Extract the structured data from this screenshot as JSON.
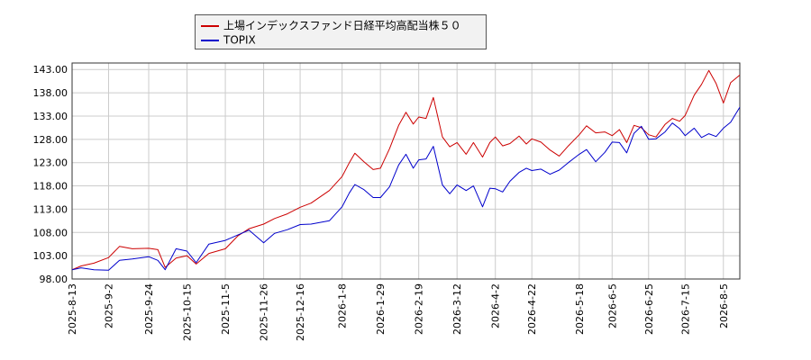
{
  "chart_data": {
    "type": "line",
    "title": "",
    "xlabel": "",
    "ylabel": "",
    "ylim": [
      98,
      144.4
    ],
    "yticks": [
      98,
      103,
      108,
      113,
      118,
      123,
      128,
      133,
      138,
      143
    ],
    "ytick_labels": [
      "98.00",
      "103.00",
      "108.00",
      "113.00",
      "118.00",
      "123.00",
      "128.00",
      "133.00",
      "138.00",
      "143.00"
    ],
    "x_start": "2025-08-13",
    "x_end": "2026-08-14",
    "xticks": [
      "2025-8-13",
      "2025-9-2",
      "2025-9-24",
      "2025-10-15",
      "2025-11-5",
      "2025-11-26",
      "2025-12-16",
      "2026-1-8",
      "2026-1-29",
      "2026-2-19",
      "2026-3-12",
      "2026-4-2",
      "2026-4-22",
      "2026-5-18",
      "2026-6-5",
      "2026-6-25",
      "2026-7-15",
      "2026-8-5"
    ],
    "xtick_dates": [
      "2025-08-13",
      "2025-09-02",
      "2025-09-24",
      "2025-10-15",
      "2025-11-05",
      "2025-11-26",
      "2025-12-16",
      "2026-01-08",
      "2026-01-29",
      "2026-02-19",
      "2026-03-12",
      "2026-04-02",
      "2026-04-22",
      "2026-05-18",
      "2026-06-05",
      "2026-06-25",
      "2026-07-15",
      "2026-08-05"
    ],
    "grid": true,
    "legend_position": "top-center",
    "series": [
      {
        "name": "上場インデックスファンド日経平均高配当株５０",
        "color": "#cc0000",
        "points": [
          [
            "2025-08-13",
            100.0
          ],
          [
            "2025-08-18",
            100.8
          ],
          [
            "2025-08-25",
            101.4
          ],
          [
            "2025-09-02",
            102.6
          ],
          [
            "2025-09-08",
            105.0
          ],
          [
            "2025-09-15",
            104.5
          ],
          [
            "2025-09-24",
            104.6
          ],
          [
            "2025-09-29",
            104.3
          ],
          [
            "2025-10-03",
            100.5
          ],
          [
            "2025-10-09",
            102.5
          ],
          [
            "2025-10-15",
            103.0
          ],
          [
            "2025-10-20",
            101.2
          ],
          [
            "2025-10-27",
            103.5
          ],
          [
            "2025-11-05",
            104.5
          ],
          [
            "2025-11-12",
            107.3
          ],
          [
            "2025-11-18",
            108.8
          ],
          [
            "2025-11-26",
            109.8
          ],
          [
            "2025-12-02",
            111.0
          ],
          [
            "2025-12-09",
            112.0
          ],
          [
            "2025-12-16",
            113.4
          ],
          [
            "2025-12-22",
            114.3
          ],
          [
            "2026-01-01",
            117.0
          ],
          [
            "2026-01-08",
            120.0
          ],
          [
            "2026-01-12",
            123.0
          ],
          [
            "2026-01-15",
            125.0
          ],
          [
            "2026-01-20",
            123.2
          ],
          [
            "2026-01-25",
            121.5
          ],
          [
            "2026-01-29",
            121.8
          ],
          [
            "2026-02-03",
            126.0
          ],
          [
            "2026-02-08",
            131.0
          ],
          [
            "2026-02-12",
            133.8
          ],
          [
            "2026-02-16",
            131.3
          ],
          [
            "2026-02-19",
            132.8
          ],
          [
            "2026-02-23",
            132.5
          ],
          [
            "2026-02-27",
            137.0
          ],
          [
            "2026-03-04",
            128.5
          ],
          [
            "2026-03-08",
            126.4
          ],
          [
            "2026-03-12",
            127.3
          ],
          [
            "2026-03-17",
            124.8
          ],
          [
            "2026-03-21",
            127.3
          ],
          [
            "2026-03-26",
            124.2
          ],
          [
            "2026-03-30",
            127.3
          ],
          [
            "2026-04-02",
            128.5
          ],
          [
            "2026-04-06",
            126.6
          ],
          [
            "2026-04-10",
            127.1
          ],
          [
            "2026-04-15",
            128.7
          ],
          [
            "2026-04-19",
            127.0
          ],
          [
            "2026-04-22",
            128.1
          ],
          [
            "2026-04-27",
            127.4
          ],
          [
            "2026-05-02",
            125.7
          ],
          [
            "2026-05-07",
            124.4
          ],
          [
            "2026-05-12",
            126.6
          ],
          [
            "2026-05-18",
            129.0
          ],
          [
            "2026-05-22",
            130.9
          ],
          [
            "2026-05-27",
            129.4
          ],
          [
            "2026-06-01",
            129.6
          ],
          [
            "2026-06-05",
            128.8
          ],
          [
            "2026-06-09",
            130.1
          ],
          [
            "2026-06-13",
            127.3
          ],
          [
            "2026-06-17",
            131.0
          ],
          [
            "2026-06-21",
            130.5
          ],
          [
            "2026-06-25",
            129.0
          ],
          [
            "2026-06-29",
            128.5
          ],
          [
            "2026-07-04",
            131.2
          ],
          [
            "2026-07-08",
            132.5
          ],
          [
            "2026-07-12",
            131.9
          ],
          [
            "2026-07-15",
            133.1
          ],
          [
            "2026-07-20",
            137.5
          ],
          [
            "2026-07-24",
            139.8
          ],
          [
            "2026-07-28",
            142.8
          ],
          [
            "2026-08-01",
            140.0
          ],
          [
            "2026-08-05",
            135.8
          ],
          [
            "2026-08-09",
            140.2
          ],
          [
            "2026-08-14",
            141.8
          ]
        ]
      },
      {
        "name": "TOPIX",
        "color": "#0000cc",
        "points": [
          [
            "2025-08-13",
            100.0
          ],
          [
            "2025-08-18",
            100.4
          ],
          [
            "2025-08-25",
            100.0
          ],
          [
            "2025-09-02",
            99.9
          ],
          [
            "2025-09-08",
            102.0
          ],
          [
            "2025-09-15",
            102.3
          ],
          [
            "2025-09-24",
            102.8
          ],
          [
            "2025-09-29",
            102.0
          ],
          [
            "2025-10-03",
            100.0
          ],
          [
            "2025-10-09",
            104.5
          ],
          [
            "2025-10-15",
            104.0
          ],
          [
            "2025-10-20",
            101.5
          ],
          [
            "2025-10-27",
            105.5
          ],
          [
            "2025-11-05",
            106.3
          ],
          [
            "2025-11-12",
            107.5
          ],
          [
            "2025-11-18",
            108.5
          ],
          [
            "2025-11-26",
            105.8
          ],
          [
            "2025-12-02",
            107.8
          ],
          [
            "2025-12-09",
            108.6
          ],
          [
            "2025-12-16",
            109.7
          ],
          [
            "2025-12-22",
            109.8
          ],
          [
            "2026-01-01",
            110.5
          ],
          [
            "2026-01-08",
            113.5
          ],
          [
            "2026-01-12",
            116.5
          ],
          [
            "2026-01-15",
            118.3
          ],
          [
            "2026-01-20",
            117.2
          ],
          [
            "2026-01-25",
            115.5
          ],
          [
            "2026-01-29",
            115.5
          ],
          [
            "2026-02-03",
            117.8
          ],
          [
            "2026-02-08",
            122.5
          ],
          [
            "2026-02-12",
            124.8
          ],
          [
            "2026-02-16",
            121.8
          ],
          [
            "2026-02-19",
            123.6
          ],
          [
            "2026-02-23",
            123.8
          ],
          [
            "2026-02-27",
            126.5
          ],
          [
            "2026-03-04",
            118.2
          ],
          [
            "2026-03-08",
            116.3
          ],
          [
            "2026-03-12",
            118.2
          ],
          [
            "2026-03-17",
            117.0
          ],
          [
            "2026-03-21",
            118.0
          ],
          [
            "2026-03-26",
            113.5
          ],
          [
            "2026-03-30",
            117.5
          ],
          [
            "2026-04-02",
            117.4
          ],
          [
            "2026-04-06",
            116.7
          ],
          [
            "2026-04-10",
            119.0
          ],
          [
            "2026-04-15",
            120.9
          ],
          [
            "2026-04-19",
            121.8
          ],
          [
            "2026-04-22",
            121.3
          ],
          [
            "2026-04-27",
            121.6
          ],
          [
            "2026-05-02",
            120.5
          ],
          [
            "2026-05-07",
            121.4
          ],
          [
            "2026-05-12",
            123.0
          ],
          [
            "2026-05-18",
            124.8
          ],
          [
            "2026-05-22",
            125.8
          ],
          [
            "2026-05-27",
            123.2
          ],
          [
            "2026-06-01",
            125.2
          ],
          [
            "2026-06-05",
            127.4
          ],
          [
            "2026-06-09",
            127.3
          ],
          [
            "2026-06-13",
            125.1
          ],
          [
            "2026-06-17",
            129.3
          ],
          [
            "2026-06-21",
            130.8
          ],
          [
            "2026-06-25",
            128.0
          ],
          [
            "2026-06-29",
            128.1
          ],
          [
            "2026-07-04",
            129.6
          ],
          [
            "2026-07-08",
            131.5
          ],
          [
            "2026-07-12",
            130.3
          ],
          [
            "2026-07-15",
            128.8
          ],
          [
            "2026-07-20",
            130.4
          ],
          [
            "2026-07-24",
            128.4
          ],
          [
            "2026-07-28",
            129.2
          ],
          [
            "2026-08-01",
            128.6
          ],
          [
            "2026-08-05",
            130.4
          ],
          [
            "2026-08-09",
            131.7
          ],
          [
            "2026-08-14",
            134.9
          ]
        ]
      }
    ]
  }
}
